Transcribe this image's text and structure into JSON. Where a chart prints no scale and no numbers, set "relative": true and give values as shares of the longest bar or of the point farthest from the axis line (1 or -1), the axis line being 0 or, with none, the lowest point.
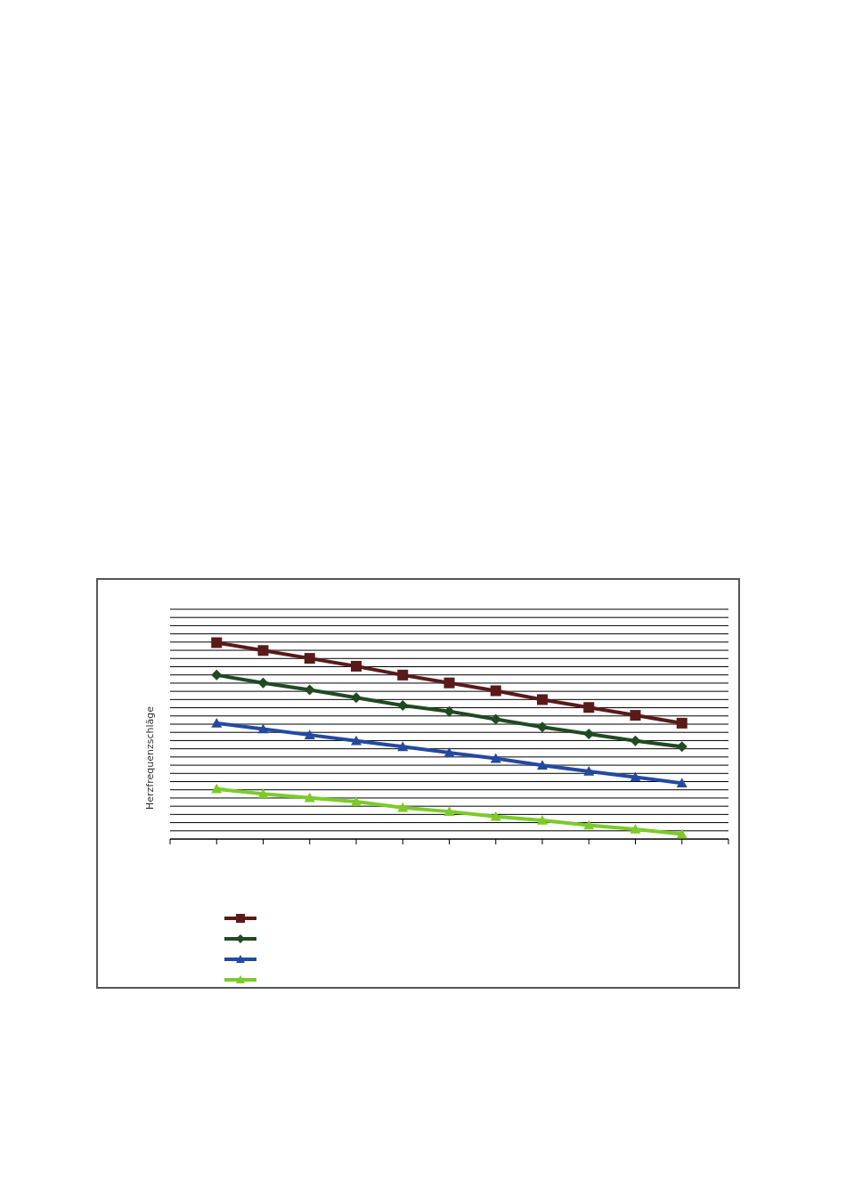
{
  "chart_data": {
    "type": "line",
    "ylabel": "Herzfrequenzschläge",
    "relative": true,
    "categories": [
      null,
      null,
      null,
      null,
      null,
      null,
      null,
      null,
      null,
      null,
      null
    ],
    "grid": "y",
    "series": [
      {
        "color": "#5a1a1a",
        "marker": "square",
        "values": [
          1,
          0.96,
          0.92,
          0.88,
          0.835,
          0.795,
          0.755,
          0.71,
          0.67,
          0.63,
          0.59
        ]
      },
      {
        "color": "#1f4a22",
        "marker": "diamond",
        "values": [
          0.835,
          0.795,
          0.76,
          0.72,
          0.68,
          0.65,
          0.61,
          0.57,
          0.535,
          0.5,
          0.47
        ]
      },
      {
        "color": "#2449a0",
        "marker": "triangle",
        "values": [
          0.59,
          0.56,
          0.53,
          0.5,
          0.47,
          0.44,
          0.41,
          0.375,
          0.345,
          0.315,
          0.285
        ]
      },
      {
        "color": "#7ccb2a",
        "marker": "triangle",
        "values": [
          0.255,
          0.23,
          0.21,
          0.19,
          0.16,
          0.14,
          0.115,
          0.095,
          0.07,
          0.05,
          0.025
        ]
      }
    ]
  }
}
